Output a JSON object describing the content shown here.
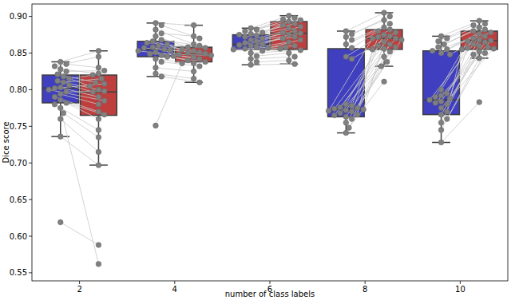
{
  "chart_data": {
    "type": "box",
    "x_label": "number of class labels",
    "y_label": "Dice score",
    "categories": [
      "2",
      "4",
      "6",
      "8",
      "10"
    ],
    "ylim": [
      0.539,
      0.917
    ],
    "yticks": [
      0.55,
      {
        "value": 0.6,
        "label": "0.60"
      },
      0.65,
      {
        "value": 0.7,
        "label": "0.70"
      },
      0.75,
      {
        "value": 0.8,
        "label": "0.80"
      },
      0.85,
      {
        "value": 0.9,
        "label": "0.90"
      }
    ],
    "series": [
      {
        "color": "#3f3fbf",
        "whisker_low": [
          0.736,
          0.818,
          0.834,
          0.741,
          0.728
        ],
        "q1": [
          0.782,
          0.845,
          0.855,
          0.763,
          0.766
        ],
        "median": [
          0.802,
          0.855,
          0.862,
          0.773,
          0.786
        ],
        "q3": [
          0.82,
          0.866,
          0.875,
          0.856,
          0.853
        ],
        "whisker_high": [
          0.838,
          0.891,
          0.884,
          0.88,
          0.873
        ],
        "values": [
          [
            0.838,
            0.835,
            0.832,
            0.828,
            0.825,
            0.821,
            0.818,
            0.815,
            0.812,
            0.81,
            0.806,
            0.803,
            0.802,
            0.8,
            0.797,
            0.794,
            0.79,
            0.786,
            0.782,
            0.78,
            0.775,
            0.768,
            0.76,
            0.736,
            0.619
          ],
          [
            0.891,
            0.888,
            0.882,
            0.877,
            0.873,
            0.868,
            0.866,
            0.864,
            0.862,
            0.86,
            0.858,
            0.857,
            0.855,
            0.854,
            0.853,
            0.851,
            0.849,
            0.847,
            0.845,
            0.842,
            0.838,
            0.83,
            0.822,
            0.818,
            0.751
          ],
          [
            0.884,
            0.882,
            0.88,
            0.878,
            0.876,
            0.875,
            0.874,
            0.872,
            0.87,
            0.868,
            0.866,
            0.864,
            0.862,
            0.861,
            0.86,
            0.858,
            0.857,
            0.856,
            0.855,
            0.853,
            0.85,
            0.846,
            0.842,
            0.838,
            0.834
          ],
          [
            0.88,
            0.876,
            0.872,
            0.868,
            0.862,
            0.857,
            0.845,
            0.842,
            0.78,
            0.778,
            0.776,
            0.775,
            0.774,
            0.773,
            0.772,
            0.771,
            0.77,
            0.768,
            0.766,
            0.765,
            0.763,
            0.76,
            0.755,
            0.748,
            0.741
          ],
          [
            0.873,
            0.87,
            0.866,
            0.862,
            0.858,
            0.855,
            0.853,
            0.85,
            0.848,
            0.8,
            0.795,
            0.792,
            0.79,
            0.788,
            0.786,
            0.784,
            0.782,
            0.78,
            0.775,
            0.77,
            0.766,
            0.76,
            0.755,
            0.745,
            0.728
          ]
        ]
      },
      {
        "color": "#bf3f3f",
        "whisker_low": [
          0.697,
          0.81,
          0.835,
          0.832,
          0.843
        ],
        "q1": [
          0.765,
          0.838,
          0.855,
          0.855,
          0.855
        ],
        "median": [
          0.797,
          0.848,
          0.877,
          0.87,
          0.867
        ],
        "q3": [
          0.82,
          0.858,
          0.893,
          0.882,
          0.88
        ],
        "whisker_high": [
          0.853,
          0.888,
          0.901,
          0.905,
          0.894
        ],
        "values": [
          [
            0.853,
            0.83,
            0.845,
            0.822,
            0.826,
            0.81,
            0.805,
            0.82,
            0.8,
            0.815,
            0.797,
            0.79,
            0.808,
            0.785,
            0.798,
            0.78,
            0.77,
            0.76,
            0.766,
            0.745,
            0.562,
            0.735,
            0.715,
            0.697,
            0.588
          ],
          [
            0.888,
            0.87,
            0.862,
            0.873,
            0.858,
            0.86,
            0.855,
            0.857,
            0.85,
            0.853,
            0.848,
            0.851,
            0.846,
            0.849,
            0.844,
            0.842,
            0.847,
            0.84,
            0.838,
            0.836,
            0.832,
            0.825,
            0.815,
            0.81,
            0.836
          ],
          [
            0.901,
            0.898,
            0.895,
            0.893,
            0.89,
            0.896,
            0.888,
            0.884,
            0.88,
            0.886,
            0.878,
            0.877,
            0.875,
            0.872,
            0.87,
            0.865,
            0.868,
            0.86,
            0.856,
            0.858,
            0.854,
            0.85,
            0.845,
            0.84,
            0.835
          ],
          [
            0.905,
            0.9,
            0.895,
            0.89,
            0.885,
            0.88,
            0.882,
            0.878,
            0.875,
            0.872,
            0.87,
            0.868,
            0.873,
            0.865,
            0.862,
            0.87,
            0.86,
            0.858,
            0.855,
            0.856,
            0.852,
            0.845,
            0.838,
            0.811,
            0.832
          ],
          [
            0.894,
            0.89,
            0.888,
            0.885,
            0.88,
            0.882,
            0.878,
            0.876,
            0.873,
            0.87,
            0.868,
            0.867,
            0.866,
            0.865,
            0.862,
            0.86,
            0.858,
            0.857,
            0.856,
            0.855,
            0.852,
            0.85,
            0.848,
            0.843,
            0.783
          ]
        ]
      }
    ]
  }
}
